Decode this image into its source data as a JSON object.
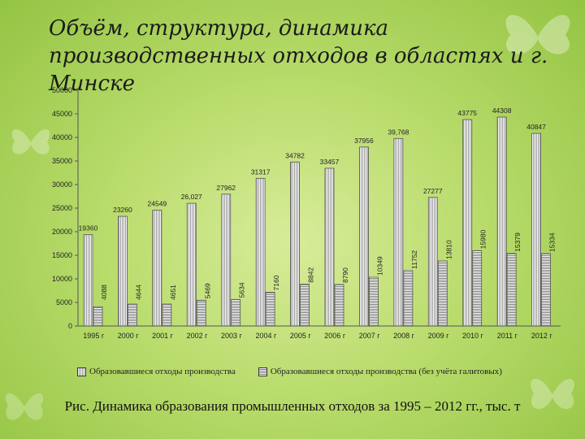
{
  "page": {
    "title": "Объём, структура, динамика производственных отходов в областях и г. Минске",
    "caption": "Рис. Динамика образования промышленных отходов за 1995 – 2012 гг., тыс. т"
  },
  "colors": {
    "background": "#b9dc6c",
    "bar_fill": "#ffffff",
    "bar_stroke": "#555555",
    "text": "#1b1b1b"
  },
  "chart_data": {
    "type": "bar",
    "categories": [
      "1995 г",
      "2000 г",
      "2001 г",
      "2002 г",
      "2003 г",
      "2004 г",
      "2005 г",
      "2006 г",
      "2007 г",
      "2008 г",
      "2009 г",
      "2010 г",
      "2011 г",
      "2012 г"
    ],
    "series": [
      {
        "name": "Образовавшиеся отходы производства",
        "values": [
          19360,
          23260,
          24549,
          26027,
          27962,
          31317,
          34782,
          33457,
          37956,
          39768,
          27277,
          43775,
          44308,
          40847
        ],
        "labels": [
          "19360",
          "23260",
          "24549",
          "26,027",
          "27962",
          "31317",
          "34782",
          "33457",
          "37956",
          "39,768",
          "27277",
          "43775",
          "44308",
          "40847"
        ]
      },
      {
        "name": "Образовавшиеся отходы производства (без учёта галитовых)",
        "values": [
          4088,
          4644,
          4651,
          5469,
          5634,
          7160,
          8842,
          8790,
          10349,
          11752,
          13810,
          15980,
          15379,
          15334
        ],
        "labels": [
          "4088",
          "4644",
          "4651",
          "5469",
          "5634",
          "7160",
          "8842",
          "8790",
          "10349",
          "11752",
          "13810",
          "15980",
          "15379",
          "15334"
        ]
      }
    ],
    "yticks": [
      0,
      5000,
      10000,
      15000,
      20000,
      25000,
      30000,
      35000,
      40000,
      45000,
      50000
    ],
    "ylim": [
      0,
      50000
    ],
    "grid": false,
    "legend_position": "bottom"
  }
}
